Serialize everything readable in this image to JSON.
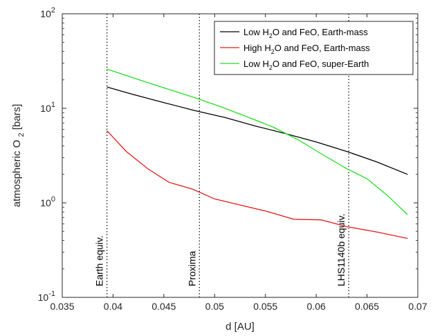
{
  "chart_data": {
    "type": "line",
    "xlabel": "d [AU]",
    "ylabel": "atmospheric O",
    "ylabel_sub": "2",
    "ylabel_unit": "[bars]",
    "xlim": [
      0.035,
      0.07
    ],
    "ylim": [
      0.1,
      100
    ],
    "yscale": "log",
    "grid": false,
    "legend_position": "top-right",
    "x_ticks": [
      "0.035",
      "0.04",
      "0.045",
      "0.05",
      "0.055",
      "0.06",
      "0.065",
      "0.07"
    ],
    "x_tick_values": [
      0.035,
      0.04,
      0.045,
      0.05,
      0.055,
      0.06,
      0.065,
      0.07
    ],
    "y_ticks": [
      {
        "value": 0.1,
        "base": "10",
        "exp": "-1"
      },
      {
        "value": 1,
        "base": "10",
        "exp": "0"
      },
      {
        "value": 10,
        "base": "10",
        "exp": "1"
      },
      {
        "value": 100,
        "base": "10",
        "exp": "2"
      }
    ],
    "series": [
      {
        "name_parts": [
          "Low H",
          "2",
          "O and FeO, Earth-mass"
        ],
        "color": "#000000",
        "x": [
          0.0394,
          0.042,
          0.045,
          0.048,
          0.051,
          0.054,
          0.057,
          0.06,
          0.063,
          0.066,
          0.069
        ],
        "y": [
          16.8,
          14.0,
          11.5,
          9.5,
          8.0,
          6.5,
          5.4,
          4.4,
          3.5,
          2.7,
          2.0
        ]
      },
      {
        "name_parts": [
          "High H",
          "2",
          "O and FeO, Earth-mass"
        ],
        "color": "#e41a1c",
        "x": [
          0.0394,
          0.0413,
          0.0434,
          0.0455,
          0.0478,
          0.05,
          0.0525,
          0.055,
          0.0578,
          0.0605,
          0.063,
          0.066,
          0.069
        ],
        "y": [
          5.8,
          3.5,
          2.3,
          1.65,
          1.4,
          1.1,
          0.95,
          0.82,
          0.67,
          0.66,
          0.56,
          0.49,
          0.42
        ]
      },
      {
        "name_parts": [
          "Low H",
          "2",
          "O and FeO, super-Earth"
        ],
        "color": "#22dd22",
        "x": [
          0.0394,
          0.042,
          0.045,
          0.048,
          0.0505,
          0.053,
          0.0558,
          0.0583,
          0.0605,
          0.063,
          0.065,
          0.067,
          0.069
        ],
        "y": [
          26.0,
          21.0,
          16.5,
          13.0,
          10.5,
          8.3,
          6.3,
          4.6,
          3.3,
          2.3,
          1.8,
          1.2,
          0.75
        ]
      }
    ],
    "annotations": [
      {
        "x": 0.0394,
        "label": "Earth equiv."
      },
      {
        "x": 0.0485,
        "label": "Proxima"
      },
      {
        "x": 0.0632,
        "label": "LHS1140b equiv."
      }
    ]
  }
}
